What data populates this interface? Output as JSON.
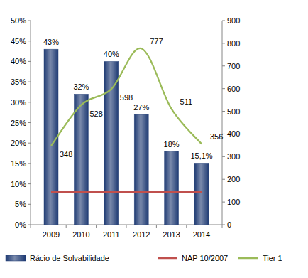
{
  "chart_data": {
    "type": "bar",
    "categories": [
      "2009",
      "2010",
      "2011",
      "2012",
      "2013",
      "2014"
    ],
    "series": [
      {
        "name": "Rácio de Solvabilidade",
        "type": "bar",
        "color": "#1f3b73",
        "values": [
          43,
          32,
          40,
          27,
          18,
          15.1
        ],
        "value_labels": [
          "43%",
          "32%",
          "40%",
          "27%",
          "18%",
          "15,1%"
        ],
        "data_labels": true
      },
      {
        "name": "NAP 10/2007",
        "type": "line",
        "color": "#c0504d",
        "line_style": "solid",
        "values": [
          8,
          8,
          8,
          8,
          8,
          8
        ],
        "data_labels": false
      },
      {
        "name": "Tier 1",
        "type": "line",
        "color": "#9bbb59",
        "line_style": "smooth",
        "axis": "y2",
        "values": [
          348,
          528,
          598,
          777,
          511,
          356
        ],
        "data_labels": true
      }
    ],
    "ylim": [
      0,
      50
    ],
    "yticks": [
      {
        "value": 0,
        "label": "0%"
      },
      {
        "value": 5,
        "label": "5%"
      },
      {
        "value": 10,
        "label": "10%"
      },
      {
        "value": 15,
        "label": "15%"
      },
      {
        "value": 20,
        "label": "20%"
      },
      {
        "value": 25,
        "label": "25%"
      },
      {
        "value": 30,
        "label": "30%"
      },
      {
        "value": 35,
        "label": "35%"
      },
      {
        "value": 40,
        "label": "40%"
      },
      {
        "value": 45,
        "label": "45%"
      },
      {
        "value": 50,
        "label": "50%"
      }
    ],
    "y2lim": [
      0,
      900
    ],
    "y2ticks": [
      0,
      100,
      200,
      300,
      400,
      500,
      600,
      700,
      800,
      900
    ],
    "grid": false,
    "legend": "bottom"
  }
}
